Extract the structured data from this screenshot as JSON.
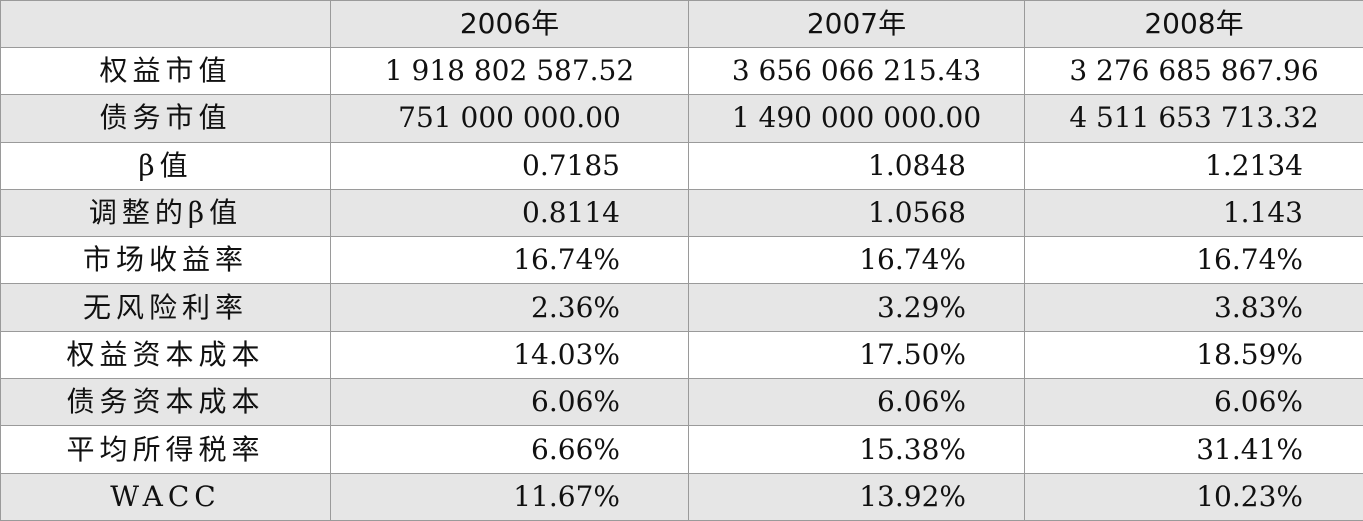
{
  "table": {
    "corner": "",
    "years": [
      "2006年",
      "2007年",
      "2008年"
    ],
    "rows": [
      {
        "label": "权益市值",
        "values": [
          "1 918 802 587.52",
          "3 656 066 215.43",
          "3 276 685 867.96"
        ]
      },
      {
        "label": "债务市值",
        "values": [
          "751 000 000.00",
          "1 490 000 000.00",
          "4 511 653 713.32"
        ]
      },
      {
        "label": "β值",
        "values": [
          "0.7185",
          "1.0848",
          "1.2134"
        ]
      },
      {
        "label": "调整的β值",
        "values": [
          "0.8114",
          "1.0568",
          "1.143"
        ]
      },
      {
        "label": "市场收益率",
        "values": [
          "16.74%",
          "16.74%",
          "16.74%"
        ]
      },
      {
        "label": "无风险利率",
        "values": [
          "2.36%",
          "3.29%",
          "3.83%"
        ]
      },
      {
        "label": "权益资本成本",
        "values": [
          "14.03%",
          "17.50%",
          "18.59%"
        ]
      },
      {
        "label": "债务资本成本",
        "values": [
          "6.06%",
          "6.06%",
          "6.06%"
        ]
      },
      {
        "label": "平均所得税率",
        "values": [
          "6.66%",
          "15.38%",
          "31.41%"
        ]
      },
      {
        "label": "WACC",
        "values": [
          "11.67%",
          "13.92%",
          "10.23%"
        ]
      }
    ]
  },
  "colors": {
    "shaded_row": "#e6e6e6",
    "grid_line": "#9a9a9a",
    "text": "#111111"
  }
}
